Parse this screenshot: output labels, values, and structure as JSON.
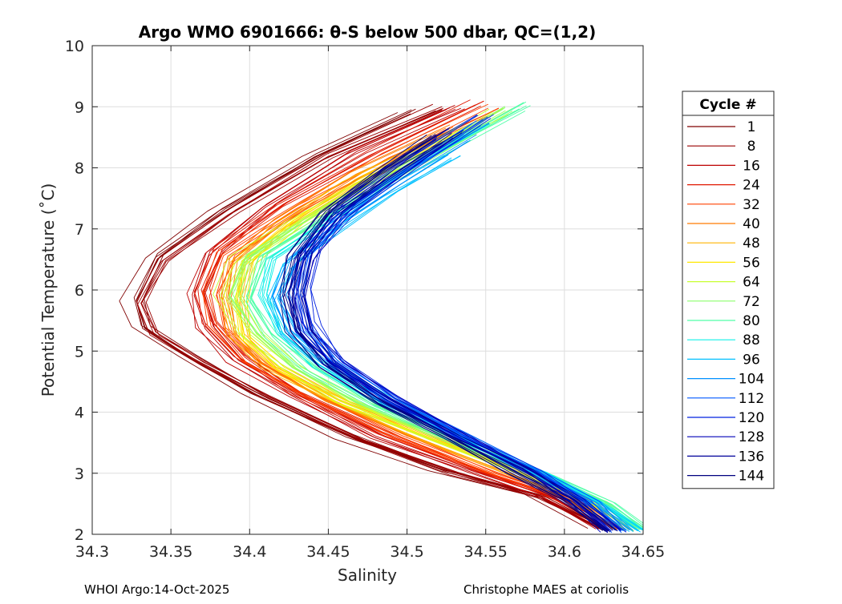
{
  "chart_data": {
    "type": "line",
    "title": "Argo WMO 6901666: θ-S below 500 dbar,  QC=(1,2)",
    "xlabel": "Salinity",
    "ylabel": "Potential Temperature (˚C)",
    "xlim": [
      34.3,
      34.65
    ],
    "ylim": [
      2,
      10
    ],
    "xticks": [
      "34.3",
      "34.35",
      "34.4",
      "34.45",
      "34.5",
      "34.55",
      "34.6",
      "34.65"
    ],
    "yticks": [
      "2",
      "3",
      "4",
      "5",
      "6",
      "7",
      "8",
      "9",
      "10"
    ],
    "grid": true,
    "legend_title": "Cycle #",
    "legend_position": "right",
    "legend": [
      {
        "label": "1",
        "color": "#800000"
      },
      {
        "label": "8",
        "color": "#9a0000"
      },
      {
        "label": "16",
        "color": "#bc0000"
      },
      {
        "label": "24",
        "color": "#e01800"
      },
      {
        "label": "32",
        "color": "#ff4000"
      },
      {
        "label": "40",
        "color": "#ff7a00"
      },
      {
        "label": "48",
        "color": "#ffb400"
      },
      {
        "label": "56",
        "color": "#ffe800"
      },
      {
        "label": "64",
        "color": "#c8ff30"
      },
      {
        "label": "72",
        "color": "#8cff6c"
      },
      {
        "label": "80",
        "color": "#50ffa8"
      },
      {
        "label": "88",
        "color": "#10f0e8"
      },
      {
        "label": "96",
        "color": "#00c0ff"
      },
      {
        "label": "104",
        "color": "#0090ff"
      },
      {
        "label": "112",
        "color": "#0058ff"
      },
      {
        "label": "120",
        "color": "#0020e0"
      },
      {
        "label": "128",
        "color": "#0000b8"
      },
      {
        "label": "136",
        "color": "#00009a"
      },
      {
        "label": "144",
        "color": "#000080"
      }
    ],
    "series": [
      {
        "name": "1",
        "color": "#800000",
        "points": [
          [
            34.5,
            8.92
          ],
          [
            34.44,
            8.2
          ],
          [
            34.38,
            7.3
          ],
          [
            34.34,
            6.55
          ],
          [
            34.325,
            5.85
          ],
          [
            34.33,
            5.4
          ],
          [
            34.36,
            4.9
          ],
          [
            34.4,
            4.3
          ],
          [
            34.46,
            3.6
          ],
          [
            34.52,
            3.05
          ],
          [
            34.58,
            2.65
          ],
          [
            34.62,
            2.1
          ]
        ]
      },
      {
        "name": "8",
        "color": "#9a0000",
        "points": [
          [
            34.52,
            9.0
          ],
          [
            34.45,
            8.2
          ],
          [
            34.39,
            7.3
          ],
          [
            34.345,
            6.5
          ],
          [
            34.33,
            5.8
          ],
          [
            34.34,
            5.3
          ],
          [
            34.37,
            4.8
          ],
          [
            34.41,
            4.25
          ],
          [
            34.47,
            3.55
          ],
          [
            34.53,
            3.0
          ],
          [
            34.585,
            2.6
          ],
          [
            34.625,
            2.08
          ]
        ]
      },
      {
        "name": "16",
        "color": "#bc0000",
        "points": [
          [
            34.53,
            9.0
          ],
          [
            34.465,
            8.25
          ],
          [
            34.41,
            7.4
          ],
          [
            34.375,
            6.6
          ],
          [
            34.365,
            5.95
          ],
          [
            34.37,
            5.4
          ],
          [
            34.39,
            4.85
          ],
          [
            34.43,
            4.25
          ],
          [
            34.48,
            3.6
          ],
          [
            34.54,
            3.05
          ],
          [
            34.59,
            2.6
          ],
          [
            34.625,
            2.1
          ]
        ]
      },
      {
        "name": "24",
        "color": "#e01800",
        "points": [
          [
            34.545,
            9.05
          ],
          [
            34.48,
            8.25
          ],
          [
            34.42,
            7.4
          ],
          [
            34.38,
            6.65
          ],
          [
            34.37,
            6.0
          ],
          [
            34.375,
            5.45
          ],
          [
            34.395,
            4.9
          ],
          [
            34.43,
            4.3
          ],
          [
            34.485,
            3.65
          ],
          [
            34.545,
            3.05
          ],
          [
            34.595,
            2.6
          ],
          [
            34.63,
            2.1
          ]
        ]
      },
      {
        "name": "32",
        "color": "#ff4000",
        "points": [
          [
            34.555,
            9.0
          ],
          [
            34.49,
            8.2
          ],
          [
            34.43,
            7.35
          ],
          [
            34.385,
            6.6
          ],
          [
            34.375,
            5.95
          ],
          [
            34.38,
            5.4
          ],
          [
            34.4,
            4.85
          ],
          [
            34.44,
            4.25
          ],
          [
            34.495,
            3.6
          ],
          [
            34.55,
            3.05
          ],
          [
            34.6,
            2.6
          ],
          [
            34.63,
            2.1
          ]
        ]
      },
      {
        "name": "40",
        "color": "#ff7a00",
        "points": [
          [
            34.53,
            8.7
          ],
          [
            34.47,
            7.95
          ],
          [
            34.42,
            7.15
          ],
          [
            34.39,
            6.5
          ],
          [
            34.385,
            5.9
          ],
          [
            34.39,
            5.3
          ],
          [
            34.41,
            4.8
          ],
          [
            34.45,
            4.2
          ],
          [
            34.505,
            3.6
          ],
          [
            34.56,
            3.05
          ],
          [
            34.605,
            2.6
          ],
          [
            34.635,
            2.1
          ]
        ]
      },
      {
        "name": "48",
        "color": "#ffb400",
        "points": [
          [
            34.52,
            8.5
          ],
          [
            34.465,
            7.8
          ],
          [
            34.42,
            7.05
          ],
          [
            34.395,
            6.45
          ],
          [
            34.39,
            5.85
          ],
          [
            34.395,
            5.25
          ],
          [
            34.415,
            4.75
          ],
          [
            34.455,
            4.2
          ],
          [
            34.51,
            3.6
          ],
          [
            34.565,
            3.05
          ],
          [
            34.61,
            2.6
          ],
          [
            34.64,
            2.08
          ]
        ]
      },
      {
        "name": "56",
        "color": "#ffe800",
        "points": [
          [
            34.54,
            8.6
          ],
          [
            34.48,
            7.85
          ],
          [
            34.43,
            7.1
          ],
          [
            34.4,
            6.45
          ],
          [
            34.395,
            5.8
          ],
          [
            34.4,
            5.2
          ],
          [
            34.42,
            4.7
          ],
          [
            34.46,
            4.15
          ],
          [
            34.515,
            3.6
          ],
          [
            34.57,
            3.05
          ],
          [
            34.615,
            2.6
          ],
          [
            34.645,
            2.08
          ]
        ]
      },
      {
        "name": "64",
        "color": "#c8ff30",
        "points": [
          [
            34.56,
            8.95
          ],
          [
            34.5,
            8.1
          ],
          [
            34.44,
            7.25
          ],
          [
            34.395,
            6.5
          ],
          [
            34.385,
            5.9
          ],
          [
            34.4,
            5.3
          ],
          [
            34.425,
            4.75
          ],
          [
            34.465,
            4.15
          ],
          [
            34.52,
            3.55
          ],
          [
            34.575,
            3.0
          ],
          [
            34.62,
            2.55
          ],
          [
            34.645,
            2.08
          ]
        ]
      },
      {
        "name": "72",
        "color": "#8cff6c",
        "points": [
          [
            34.565,
            8.95
          ],
          [
            34.505,
            8.1
          ],
          [
            34.45,
            7.3
          ],
          [
            34.4,
            6.55
          ],
          [
            34.39,
            5.9
          ],
          [
            34.405,
            5.3
          ],
          [
            34.43,
            4.75
          ],
          [
            34.47,
            4.15
          ],
          [
            34.525,
            3.55
          ],
          [
            34.58,
            3.0
          ],
          [
            34.62,
            2.55
          ],
          [
            34.645,
            2.08
          ]
        ]
      },
      {
        "name": "80",
        "color": "#50ffa8",
        "points": [
          [
            34.57,
            9.0
          ],
          [
            34.51,
            8.15
          ],
          [
            34.455,
            7.35
          ],
          [
            34.405,
            6.55
          ],
          [
            34.395,
            5.85
          ],
          [
            34.41,
            5.25
          ],
          [
            34.435,
            4.7
          ],
          [
            34.475,
            4.1
          ],
          [
            34.53,
            3.5
          ],
          [
            34.585,
            2.95
          ],
          [
            34.625,
            2.5
          ],
          [
            34.65,
            2.05
          ]
        ]
      },
      {
        "name": "88",
        "color": "#10f0e8",
        "points": [
          [
            34.55,
            8.7
          ],
          [
            34.5,
            7.95
          ],
          [
            34.455,
            7.2
          ],
          [
            34.415,
            6.5
          ],
          [
            34.41,
            5.9
          ],
          [
            34.42,
            5.3
          ],
          [
            34.445,
            4.75
          ],
          [
            34.485,
            4.15
          ],
          [
            34.535,
            3.55
          ],
          [
            34.585,
            3.0
          ],
          [
            34.625,
            2.5
          ],
          [
            34.65,
            2.05
          ]
        ]
      },
      {
        "name": "96",
        "color": "#00c0ff",
        "points": [
          [
            34.53,
            8.2
          ],
          [
            34.49,
            7.6
          ],
          [
            34.455,
            7.0
          ],
          [
            34.425,
            6.4
          ],
          [
            34.415,
            5.85
          ],
          [
            34.425,
            5.3
          ],
          [
            34.45,
            4.75
          ],
          [
            34.49,
            4.15
          ],
          [
            34.54,
            3.55
          ],
          [
            34.585,
            3.0
          ],
          [
            34.62,
            2.5
          ],
          [
            34.645,
            2.05
          ]
        ]
      },
      {
        "name": "104",
        "color": "#0090ff",
        "points": [
          [
            34.54,
            8.5
          ],
          [
            34.495,
            7.8
          ],
          [
            34.46,
            7.15
          ],
          [
            34.43,
            6.5
          ],
          [
            34.42,
            5.9
          ],
          [
            34.43,
            5.3
          ],
          [
            34.455,
            4.75
          ],
          [
            34.49,
            4.15
          ],
          [
            34.54,
            3.55
          ],
          [
            34.585,
            3.0
          ],
          [
            34.62,
            2.5
          ],
          [
            34.64,
            2.05
          ]
        ]
      },
      {
        "name": "112",
        "color": "#0058ff",
        "points": [
          [
            34.545,
            8.75
          ],
          [
            34.5,
            8.0
          ],
          [
            34.46,
            7.3
          ],
          [
            34.435,
            6.6
          ],
          [
            34.43,
            5.95
          ],
          [
            34.435,
            5.35
          ],
          [
            34.455,
            4.8
          ],
          [
            34.49,
            4.2
          ],
          [
            34.535,
            3.6
          ],
          [
            34.58,
            3.05
          ],
          [
            34.615,
            2.55
          ],
          [
            34.635,
            2.05
          ]
        ]
      },
      {
        "name": "120",
        "color": "#0020e0",
        "points": [
          [
            34.55,
            8.85
          ],
          [
            34.505,
            8.1
          ],
          [
            34.465,
            7.4
          ],
          [
            34.44,
            6.7
          ],
          [
            34.435,
            6.05
          ],
          [
            34.44,
            5.45
          ],
          [
            34.455,
            4.85
          ],
          [
            34.49,
            4.25
          ],
          [
            34.535,
            3.6
          ],
          [
            34.58,
            3.05
          ],
          [
            34.61,
            2.55
          ],
          [
            34.635,
            2.05
          ]
        ]
      },
      {
        "name": "128",
        "color": "#0000b8",
        "points": [
          [
            34.525,
            8.45
          ],
          [
            34.49,
            7.85
          ],
          [
            34.455,
            7.2
          ],
          [
            34.435,
            6.5
          ],
          [
            34.43,
            5.85
          ],
          [
            34.435,
            5.3
          ],
          [
            34.455,
            4.8
          ],
          [
            34.49,
            4.2
          ],
          [
            34.535,
            3.6
          ],
          [
            34.575,
            3.05
          ],
          [
            34.61,
            2.55
          ],
          [
            34.63,
            2.05
          ]
        ]
      },
      {
        "name": "136",
        "color": "#00009a",
        "points": [
          [
            34.53,
            8.6
          ],
          [
            34.49,
            7.95
          ],
          [
            34.455,
            7.3
          ],
          [
            34.435,
            6.6
          ],
          [
            34.43,
            5.95
          ],
          [
            34.435,
            5.35
          ],
          [
            34.45,
            4.8
          ],
          [
            34.485,
            4.2
          ],
          [
            34.53,
            3.6
          ],
          [
            34.575,
            3.05
          ],
          [
            34.605,
            2.55
          ],
          [
            34.63,
            2.05
          ]
        ]
      },
      {
        "name": "144",
        "color": "#000080",
        "points": [
          [
            34.52,
            8.5
          ],
          [
            34.485,
            7.9
          ],
          [
            34.45,
            7.25
          ],
          [
            34.43,
            6.55
          ],
          [
            34.425,
            5.9
          ],
          [
            34.43,
            5.3
          ],
          [
            34.45,
            4.75
          ],
          [
            34.485,
            4.15
          ],
          [
            34.53,
            3.55
          ],
          [
            34.57,
            3.0
          ],
          [
            34.605,
            2.55
          ],
          [
            34.63,
            2.05
          ]
        ]
      }
    ]
  },
  "footer": {
    "left": "WHOI Argo:14-Oct-2025",
    "right": "Christophe MAES at coriolis"
  }
}
